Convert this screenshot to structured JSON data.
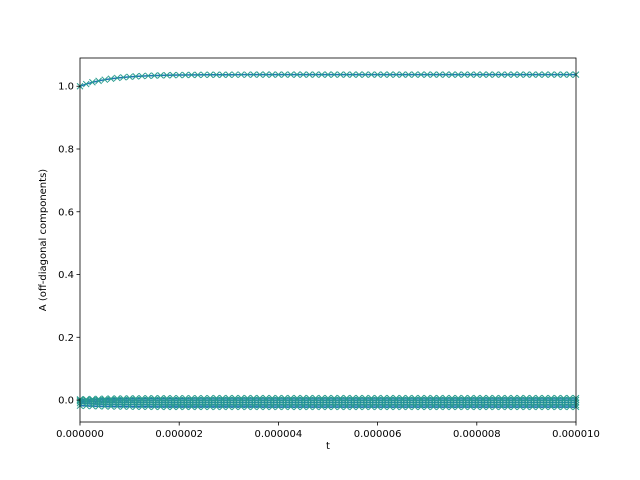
{
  "chart_data": {
    "type": "line",
    "title": "",
    "xlabel": "t",
    "ylabel": "A (off-diagonal components)",
    "xlim": [
      0,
      1e-05
    ],
    "ylim": [
      -0.07,
      1.09
    ],
    "x_ticks": [
      0,
      2e-06,
      4e-06,
      6e-06,
      8e-06,
      1e-05
    ],
    "x_tick_labels": [
      "0.000000",
      "0.000002",
      "0.000004",
      "0.000006",
      "0.000008",
      "0.000010"
    ],
    "y_ticks": [
      0.0,
      0.2,
      0.4,
      0.6,
      0.8,
      1.0
    ],
    "y_tick_labels": [
      "0.0",
      "0.2",
      "0.4",
      "0.6",
      "0.8",
      "1.0"
    ],
    "grid": false,
    "x_samples": {
      "start": 0,
      "stop": 1e-05,
      "count": 81
    },
    "colors": {
      "line": "#1f77b4",
      "marker": "#2a9d8f"
    },
    "series": [
      {
        "marker": "x",
        "y0": 1.0,
        "y_end": 1.037
      },
      {
        "marker": "x",
        "y0": 0.002,
        "y_end": 0.006
      },
      {
        "marker": "x",
        "y0": 0.0,
        "y_end": 0.0
      },
      {
        "marker": "x",
        "y0": -0.004,
        "y_end": -0.008
      },
      {
        "marker": "x",
        "y0": -0.01,
        "y_end": -0.016
      },
      {
        "marker": "x",
        "y0": -0.018,
        "y_end": -0.022
      }
    ]
  }
}
